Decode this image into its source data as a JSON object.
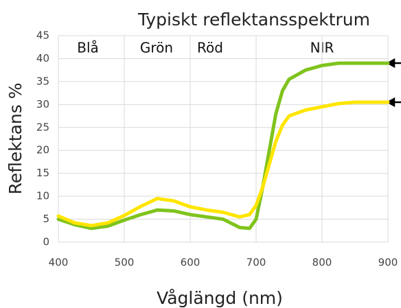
{
  "chart_data": {
    "type": "line",
    "title": "Typiskt reflektansspektrum",
    "xlabel": "Våglängd (nm)",
    "ylabel": "Reflektans %",
    "annotations": [
      "Blå",
      "Grön",
      "Röd",
      "NIR"
    ],
    "x": [
      400,
      425,
      450,
      475,
      500,
      525,
      550,
      575,
      600,
      625,
      650,
      675,
      690,
      700,
      710,
      720,
      730,
      740,
      750,
      775,
      800,
      825,
      850,
      900
    ],
    "series": [
      {
        "color": "#7fc31c",
        "values": [
          5,
          3.8,
          3,
          3.5,
          4.8,
          6,
          7,
          6.8,
          6,
          5.5,
          5,
          3.2,
          3,
          5,
          12,
          20,
          28,
          33,
          35.5,
          37.5,
          38.5,
          39,
          39,
          39
        ]
      },
      {
        "color": "#ffe500",
        "values": [
          5.7,
          4.2,
          3.6,
          4.2,
          5.8,
          7.8,
          9.5,
          9,
          7.7,
          7,
          6.5,
          5.5,
          6,
          8,
          12,
          17,
          22,
          25.5,
          27.5,
          28.8,
          29.5,
          30.2,
          30.5,
          30.5
        ]
      }
    ],
    "xlim": [
      400,
      900
    ],
    "xticks": [
      400,
      500,
      600,
      700,
      800,
      900
    ],
    "ylim": [
      0,
      45
    ],
    "yticks": [
      0,
      5,
      10,
      15,
      20,
      25,
      30,
      35,
      40,
      45
    ],
    "grid": true
  }
}
